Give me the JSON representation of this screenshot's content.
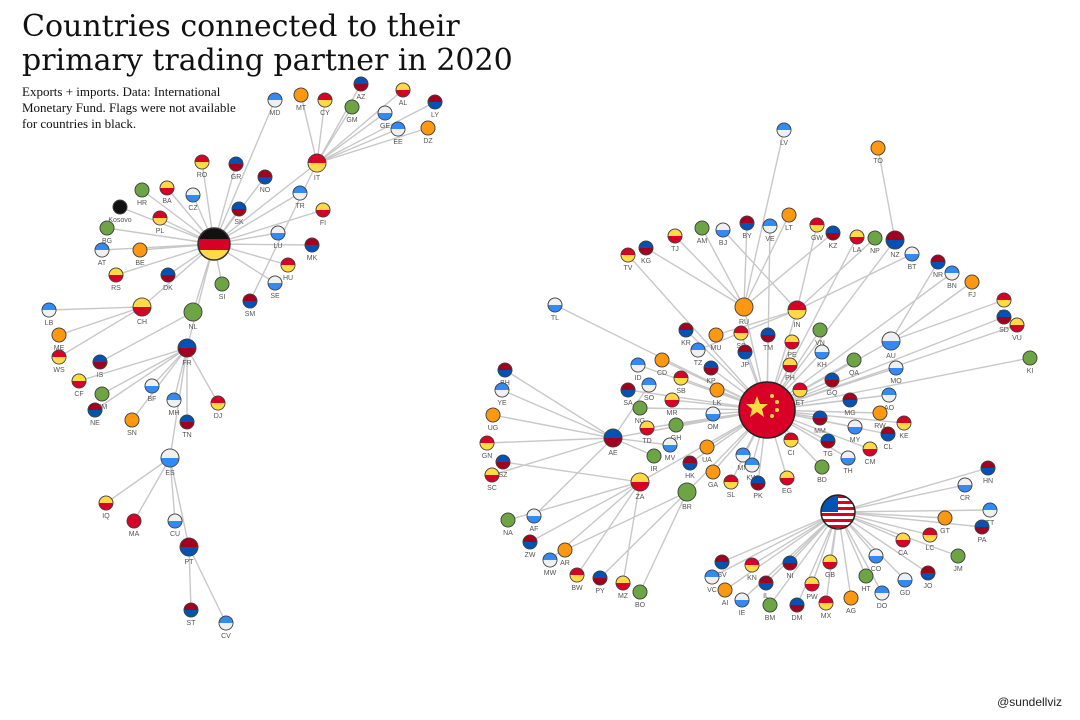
{
  "header": {
    "title": [
      "Countries connected to their",
      "primary trading partner in 2020"
    ],
    "subtitle": [
      "Exports + imports. Data: International",
      "Monetary Fund. Flags were not available",
      "for countries in black."
    ]
  },
  "nodes": [
    {
      "label": "IT"
    },
    {
      "label": "FR"
    },
    {
      "label": "CH"
    },
    {
      "label": "NL"
    },
    {
      "label": "ES"
    },
    {
      "label": "PT"
    },
    {
      "label": "MD"
    },
    {
      "label": "MT"
    },
    {
      "label": "CY"
    },
    {
      "label": "AZ"
    },
    {
      "label": "AL"
    },
    {
      "label": "GM"
    },
    {
      "label": "GE"
    },
    {
      "label": "LY"
    },
    {
      "label": "EE"
    },
    {
      "label": "DZ"
    },
    {
      "label": "RO"
    },
    {
      "label": "GR"
    },
    {
      "label": "BA"
    },
    {
      "label": "HR"
    },
    {
      "label": "CZ"
    },
    {
      "label": "NO"
    },
    {
      "label": "TR"
    },
    {
      "label": "Kosovo"
    },
    {
      "label": "PL"
    },
    {
      "label": "SK"
    },
    {
      "label": "FI"
    },
    {
      "label": "BG"
    },
    {
      "label": "LU"
    },
    {
      "label": "MK"
    },
    {
      "label": "AT"
    },
    {
      "label": "BE"
    },
    {
      "label": "HU"
    },
    {
      "label": "DK"
    },
    {
      "label": "RS"
    },
    {
      "label": "SI"
    },
    {
      "label": "SE"
    },
    {
      "label": "SM"
    },
    {
      "label": "LB"
    },
    {
      "label": "ME"
    },
    {
      "label": "WS"
    },
    {
      "label": "IS"
    },
    {
      "label": "CF"
    },
    {
      "label": "KM"
    },
    {
      "label": "BF"
    },
    {
      "label": "NE"
    },
    {
      "label": "MH"
    },
    {
      "label": "SN"
    },
    {
      "label": "DJ"
    },
    {
      "label": "TN"
    },
    {
      "label": "IQ"
    },
    {
      "label": "MA"
    },
    {
      "label": "CU"
    },
    {
      "label": "ST"
    },
    {
      "label": "CV"
    },
    {
      "label": "RU"
    },
    {
      "label": "IN"
    },
    {
      "label": "AE"
    },
    {
      "label": "ZA"
    },
    {
      "label": "BR"
    },
    {
      "label": "AU"
    },
    {
      "label": "NZ"
    },
    {
      "label": "LV"
    },
    {
      "label": "TO"
    },
    {
      "label": "TV"
    },
    {
      "label": "KG"
    },
    {
      "label": "TJ"
    },
    {
      "label": "AM"
    },
    {
      "label": "BJ"
    },
    {
      "label": "BY"
    },
    {
      "label": "VE"
    },
    {
      "label": "LT"
    },
    {
      "label": "GW"
    },
    {
      "label": "KZ"
    },
    {
      "label": "LA"
    },
    {
      "label": "NP"
    },
    {
      "label": "BT"
    },
    {
      "label": "NR"
    },
    {
      "label": "BN"
    },
    {
      "label": "FJ"
    },
    {
      "label": "PG"
    },
    {
      "label": "SD"
    },
    {
      "label": "VU"
    },
    {
      "label": "KI"
    },
    {
      "label": "TL"
    },
    {
      "label": "KR"
    },
    {
      "label": "TZ"
    },
    {
      "label": "MU"
    },
    {
      "label": "SS"
    },
    {
      "label": "TM"
    },
    {
      "label": "PE"
    },
    {
      "label": "VN"
    },
    {
      "label": "KH"
    },
    {
      "label": "JP"
    },
    {
      "label": "ID"
    },
    {
      "label": "CD"
    },
    {
      "label": "SB"
    },
    {
      "label": "KP"
    },
    {
      "label": "PH"
    },
    {
      "label": "QA"
    },
    {
      "label": "MO"
    },
    {
      "label": "SA"
    },
    {
      "label": "SO"
    },
    {
      "label": "LK"
    },
    {
      "label": "ET"
    },
    {
      "label": "GQ"
    },
    {
      "label": "MR"
    },
    {
      "label": "NG"
    },
    {
      "label": "OM"
    },
    {
      "label": "MG"
    },
    {
      "label": "AO"
    },
    {
      "label": "RW"
    },
    {
      "label": "KE"
    },
    {
      "label": "MM"
    },
    {
      "label": "TD"
    },
    {
      "label": "GH"
    },
    {
      "label": "MY"
    },
    {
      "label": "CL"
    },
    {
      "label": "MN"
    },
    {
      "label": "UA"
    },
    {
      "label": "CI"
    },
    {
      "label": "TG"
    },
    {
      "label": "CM"
    },
    {
      "label": "IR"
    },
    {
      "label": "MV"
    },
    {
      "label": "HK"
    },
    {
      "label": "KW"
    },
    {
      "label": "GA"
    },
    {
      "label": "SL"
    },
    {
      "label": "PK"
    },
    {
      "label": "EG"
    },
    {
      "label": "BD"
    },
    {
      "label": "TH"
    },
    {
      "label": "BH"
    },
    {
      "label": "YE"
    },
    {
      "label": "UG"
    },
    {
      "label": "GN"
    },
    {
      "label": "SZ"
    },
    {
      "label": "SC"
    },
    {
      "label": "NA"
    },
    {
      "label": "AF"
    },
    {
      "label": "ZW"
    },
    {
      "label": "MW"
    },
    {
      "label": "AR"
    },
    {
      "label": "BW"
    },
    {
      "label": "PY"
    },
    {
      "label": "MZ"
    },
    {
      "label": "BO"
    },
    {
      "label": "CR"
    },
    {
      "label": "HN"
    },
    {
      "label": "TT"
    },
    {
      "label": "GT"
    },
    {
      "label": "LC"
    },
    {
      "label": "PA"
    },
    {
      "label": "CA"
    },
    {
      "label": "JM"
    },
    {
      "label": "CO"
    },
    {
      "label": "SV"
    },
    {
      "label": "VC"
    },
    {
      "label": "AI"
    },
    {
      "label": "KN"
    },
    {
      "label": "NI"
    },
    {
      "label": "GB"
    },
    {
      "label": "HT"
    },
    {
      "label": "GD"
    },
    {
      "label": "JO"
    },
    {
      "label": "DO"
    },
    {
      "label": "AG"
    },
    {
      "label": "MX"
    },
    {
      "label": "DM"
    },
    {
      "label": "PW"
    },
    {
      "label": "BM"
    },
    {
      "label": "IE"
    },
    {
      "label": "IL"
    }
  ],
  "credit": "@sundellviz"
}
